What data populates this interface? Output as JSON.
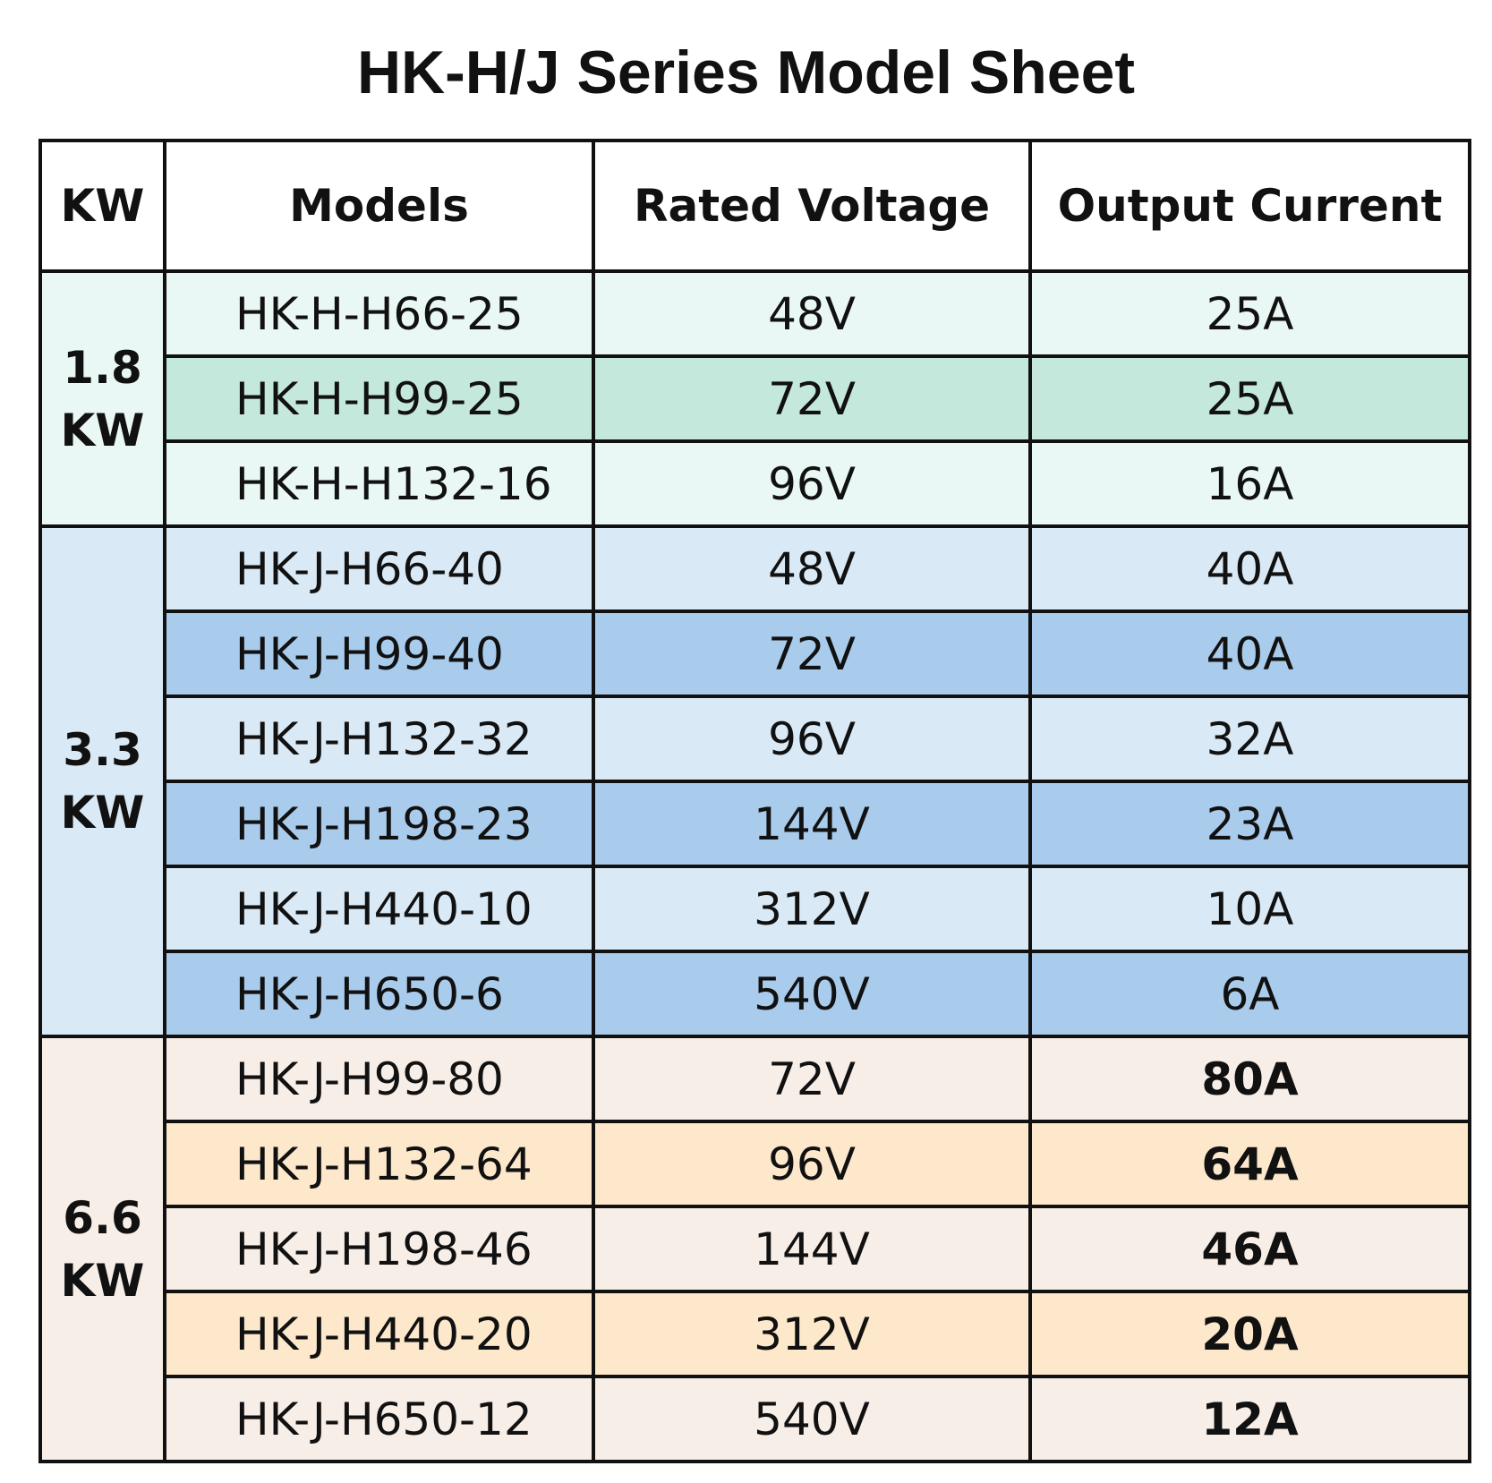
{
  "header": {
    "title": "HK-H/J Series Model Sheet"
  },
  "table": {
    "columns": [
      "KW",
      "Models",
      "Rated Voltage",
      "Output Current"
    ],
    "groups": [
      {
        "kw": "1.8 KW",
        "rows": [
          {
            "model": "HK-H-H66-25",
            "voltage": "48V",
            "current": "25A"
          },
          {
            "model": "HK-H-H99-25",
            "voltage": "72V",
            "current": "25A"
          },
          {
            "model": "HK-H-H132-16",
            "voltage": "96V",
            "current": "16A"
          }
        ]
      },
      {
        "kw": "3.3 KW",
        "rows": [
          {
            "model": "HK-J-H66-40",
            "voltage": "48V",
            "current": "40A"
          },
          {
            "model": "HK-J-H99-40",
            "voltage": "72V",
            "current": "40A"
          },
          {
            "model": "HK-J-H132-32",
            "voltage": "96V",
            "current": "32A"
          },
          {
            "model": "HK-J-H198-23",
            "voltage": "144V",
            "current": "23A"
          },
          {
            "model": "HK-J-H440-10",
            "voltage": "312V",
            "current": "10A"
          },
          {
            "model": "HK-J-H650-6",
            "voltage": "540V",
            "current": "6A"
          }
        ]
      },
      {
        "kw": "6.6 KW",
        "rows": [
          {
            "model": "HK-J-H99-80",
            "voltage": "72V",
            "current": "80A"
          },
          {
            "model": "HK-J-H132-64",
            "voltage": "96V",
            "current": "64A"
          },
          {
            "model": "HK-J-H198-46",
            "voltage": "144V",
            "current": "46A"
          },
          {
            "model": "HK-J-H440-20",
            "voltage": "312V",
            "current": "20A"
          },
          {
            "model": "HK-J-H650-12",
            "voltage": "540V",
            "current": "12A"
          }
        ]
      }
    ]
  }
}
